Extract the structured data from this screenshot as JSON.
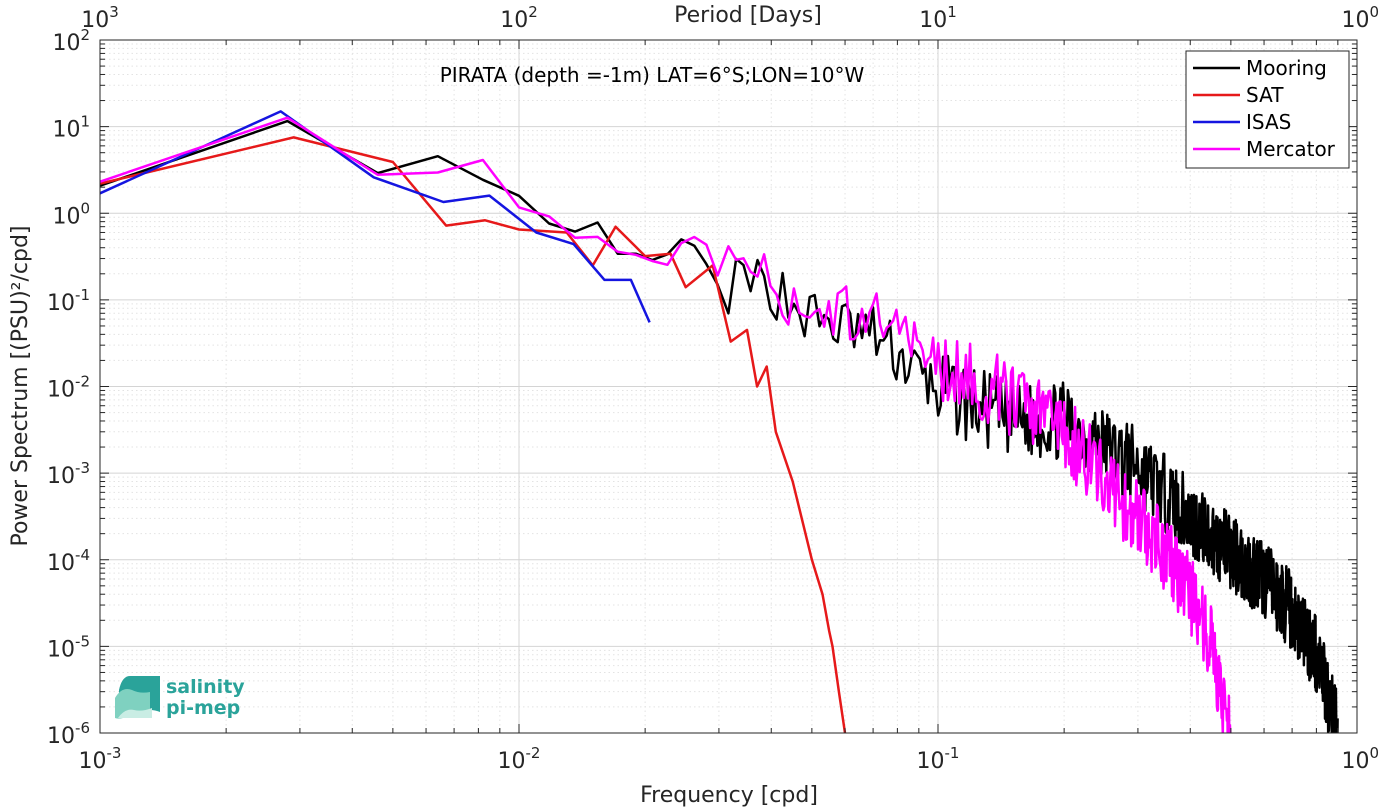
{
  "chart_data": {
    "type": "line",
    "title": "PIRATA (depth =-1m) LAT=6°S;LON=10°W",
    "xlabel": "Frequency [cpd]",
    "ylabel": "Power Spectrum [(PSU)²/cpd]",
    "top_axis_label": "Period [Days]",
    "x_scale": "log",
    "y_scale": "log",
    "xlim": [
      0.001,
      1
    ],
    "ylim": [
      1e-06,
      100
    ],
    "grid": true,
    "minor_grid": true,
    "legend_position": "top-right",
    "x_ticks": [
      {
        "value": 0.001,
        "base": "10",
        "exp": "-3"
      },
      {
        "value": 0.01,
        "base": "10",
        "exp": "-2"
      },
      {
        "value": 0.1,
        "base": "10",
        "exp": "-1"
      },
      {
        "value": 1,
        "base": "10",
        "exp": "0"
      }
    ],
    "top_ticks": [
      {
        "value": 0.001,
        "base": "10",
        "exp": "3"
      },
      {
        "value": 0.01,
        "base": "10",
        "exp": "2"
      },
      {
        "value": 0.1,
        "base": "10",
        "exp": "1"
      },
      {
        "value": 1,
        "base": "10",
        "exp": "0"
      }
    ],
    "y_ticks": [
      {
        "value": 100,
        "base": "10",
        "exp": "2"
      },
      {
        "value": 10,
        "base": "10",
        "exp": "1"
      },
      {
        "value": 1,
        "base": "10",
        "exp": "0"
      },
      {
        "value": 0.1,
        "base": "10",
        "exp": "-1"
      },
      {
        "value": 0.01,
        "base": "10",
        "exp": "-2"
      },
      {
        "value": 0.001,
        "base": "10",
        "exp": "-3"
      },
      {
        "value": 0.0001,
        "base": "10",
        "exp": "-4"
      },
      {
        "value": 1e-05,
        "base": "10",
        "exp": "-5"
      },
      {
        "value": 1e-06,
        "base": "10",
        "exp": "-6"
      }
    ],
    "series": [
      {
        "name": "Mooring",
        "color": "#000000",
        "style": "noisy",
        "anchors": [
          [
            0.001,
            2.5
          ],
          [
            0.0027,
            12
          ],
          [
            0.0045,
            2.5
          ],
          [
            0.0063,
            4.0
          ],
          [
            0.0085,
            1.9
          ],
          [
            0.01,
            1.4
          ],
          [
            0.013,
            0.5
          ],
          [
            0.0155,
            0.7
          ],
          [
            0.018,
            0.3
          ],
          [
            0.022,
            0.25
          ],
          [
            0.025,
            0.6
          ],
          [
            0.027,
            0.3
          ],
          [
            0.03,
            0.13
          ],
          [
            0.04,
            0.15
          ],
          [
            0.05,
            0.06
          ],
          [
            0.07,
            0.04
          ],
          [
            0.1,
            0.009
          ],
          [
            0.15,
            0.004
          ],
          [
            0.2,
            0.004
          ],
          [
            0.3,
            0.0012
          ],
          [
            0.4,
            0.0003
          ],
          [
            0.5,
            0.00012
          ],
          [
            0.6,
            6e-05
          ],
          [
            0.7,
            2.5e-05
          ],
          [
            0.8,
            8e-06
          ],
          [
            0.9,
            1e-06
          ]
        ],
        "xrange": [
          0.001,
          0.9
        ]
      },
      {
        "name": "SAT",
        "color": "#e6191a",
        "style": "smooth",
        "points": [
          [
            0.001,
            2.2
          ],
          [
            0.0029,
            7.5
          ],
          [
            0.005,
            3.9
          ],
          [
            0.0067,
            0.72
          ],
          [
            0.0083,
            0.83
          ],
          [
            0.01,
            0.65
          ],
          [
            0.013,
            0.6
          ],
          [
            0.015,
            0.25
          ],
          [
            0.017,
            0.7
          ],
          [
            0.02,
            0.32
          ],
          [
            0.023,
            0.34
          ],
          [
            0.025,
            0.14
          ],
          [
            0.029,
            0.25
          ],
          [
            0.032,
            0.033
          ],
          [
            0.035,
            0.045
          ],
          [
            0.037,
            0.01
          ],
          [
            0.039,
            0.017
          ],
          [
            0.041,
            0.003
          ],
          [
            0.045,
            0.0008
          ],
          [
            0.05,
            0.0001
          ],
          [
            0.053,
            4e-05
          ],
          [
            0.055,
            1.5e-05
          ],
          [
            0.056,
            1e-05
          ],
          [
            0.058,
            3e-06
          ],
          [
            0.06,
            1e-06
          ]
        ]
      },
      {
        "name": "ISAS",
        "color": "#1515e0",
        "style": "smooth",
        "points": [
          [
            0.001,
            1.7
          ],
          [
            0.0027,
            15
          ],
          [
            0.0045,
            2.6
          ],
          [
            0.0066,
            1.35
          ],
          [
            0.0085,
            1.6
          ],
          [
            0.011,
            0.6
          ],
          [
            0.0135,
            0.44
          ],
          [
            0.016,
            0.17
          ],
          [
            0.0185,
            0.17
          ],
          [
            0.0205,
            0.055
          ]
        ]
      },
      {
        "name": "Mercator",
        "color": "#ff00ff",
        "style": "noisy",
        "anchors": [
          [
            0.001,
            2.6
          ],
          [
            0.0027,
            13.5
          ],
          [
            0.0045,
            2.5
          ],
          [
            0.0066,
            3.5
          ],
          [
            0.0085,
            3.6
          ],
          [
            0.01,
            1.1
          ],
          [
            0.012,
            1.0
          ],
          [
            0.0135,
            0.5
          ],
          [
            0.015,
            0.5
          ],
          [
            0.018,
            0.3
          ],
          [
            0.022,
            0.27
          ],
          [
            0.025,
            0.45
          ],
          [
            0.027,
            0.5
          ],
          [
            0.03,
            0.2
          ],
          [
            0.04,
            0.15
          ],
          [
            0.05,
            0.08
          ],
          [
            0.07,
            0.06
          ],
          [
            0.1,
            0.02
          ],
          [
            0.15,
            0.007
          ],
          [
            0.2,
            0.003
          ],
          [
            0.25,
            0.0008
          ],
          [
            0.3,
            0.0003
          ],
          [
            0.35,
            0.00012
          ],
          [
            0.4,
            4e-05
          ],
          [
            0.45,
            1e-05
          ],
          [
            0.48,
            2.5e-06
          ],
          [
            0.5,
            1e-06
          ]
        ],
        "xrange": [
          0.001,
          0.5
        ]
      }
    ]
  },
  "logo": {
    "line1": "salinity",
    "line2": "pi-mep"
  }
}
